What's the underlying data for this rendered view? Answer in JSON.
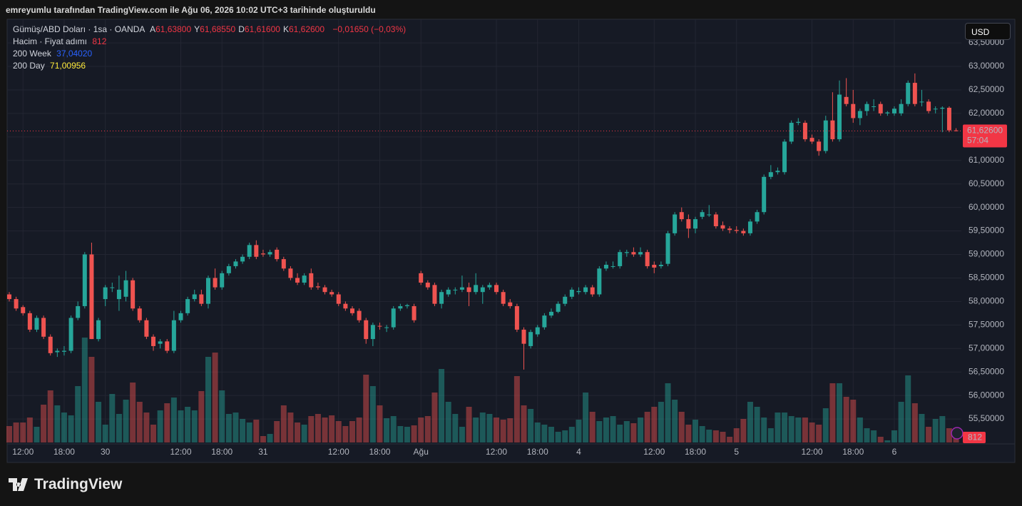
{
  "header": "emreyumlu tarafından TradingView.com ile Ağu 06, 2026 10:02 UTC+3 tarihinde oluşturuldu",
  "legend": {
    "symbol": "Gümüş/ABD Doları · 1sa · OANDA",
    "ohlc": [
      {
        "key": "A",
        "label": "61,63800"
      },
      {
        "key": "Y",
        "label": "61,68550"
      },
      {
        "key": "D",
        "label": "61,61600"
      },
      {
        "key": "K",
        "label": "61,62600"
      }
    ],
    "change": "−0,01650 (−0,03%)",
    "volume_name": "Hacim · Fiyat adımı",
    "indicators": [
      {
        "name": "200 Week",
        "label": "37,04020"
      },
      {
        "name": "200 Day",
        "label": "71,00956"
      }
    ]
  },
  "currency_button": "USD",
  "logo": "TradingView",
  "chart_data": {
    "type": "candlestick",
    "up_color": "#26a69a",
    "down_color": "#ef5350",
    "grid": true,
    "ylim": [
      55,
      64
    ],
    "yticks": [
      {
        "value": 55.5,
        "label": "55,50000"
      },
      {
        "value": 56,
        "label": "56,00000"
      },
      {
        "value": 56.5,
        "label": "56,50000"
      },
      {
        "value": 57,
        "label": "57,00000"
      },
      {
        "value": 57.5,
        "label": "57,50000"
      },
      {
        "value": 58,
        "label": "58,00000"
      },
      {
        "value": 58.5,
        "label": "58,50000"
      },
      {
        "value": 59,
        "label": "59,00000"
      },
      {
        "value": 59.5,
        "label": "59,50000"
      },
      {
        "value": 60,
        "label": "60,00000"
      },
      {
        "value": 60.5,
        "label": "60,50000"
      },
      {
        "value": 61,
        "label": "61,00000"
      },
      {
        "value": 61.5,
        "label": "61,50000"
      },
      {
        "value": 62,
        "label": "62,00000"
      },
      {
        "value": 62.5,
        "label": "62,50000"
      },
      {
        "value": 63,
        "label": "63,00000"
      },
      {
        "value": 63.5,
        "label": "63,50000"
      }
    ],
    "categories": [
      null,
      null,
      "12:00",
      null,
      null,
      null,
      null,
      null,
      "18:00",
      null,
      null,
      null,
      null,
      null,
      "30",
      null,
      null,
      null,
      null,
      null,
      null,
      null,
      null,
      null,
      null,
      "12:00",
      null,
      null,
      null,
      null,
      null,
      "18:00",
      null,
      null,
      null,
      null,
      null,
      "31",
      null,
      null,
      null,
      null,
      null,
      null,
      null,
      null,
      null,
      null,
      "12:00",
      null,
      null,
      null,
      null,
      null,
      "18:00",
      null,
      null,
      null,
      null,
      null,
      "Ağu",
      null,
      null,
      null,
      null,
      null,
      null,
      null,
      null,
      null,
      null,
      "12:00",
      null,
      null,
      null,
      null,
      null,
      "18:00",
      null,
      null,
      null,
      null,
      null,
      "4",
      null,
      null,
      null,
      null,
      null,
      null,
      null,
      null,
      null,
      null,
      "12:00",
      null,
      null,
      null,
      null,
      null,
      "18:00",
      null,
      null,
      null,
      null,
      null,
      "5",
      null,
      null,
      null,
      null,
      null,
      null,
      null,
      null,
      null,
      null,
      "12:00",
      null,
      null,
      null,
      null,
      null,
      "18:00",
      null,
      null,
      null,
      null,
      null,
      "6",
      null,
      null,
      null,
      null,
      null,
      null,
      null,
      null,
      null
    ],
    "series": [
      {
        "name": "Gümüş/ABD Doları",
        "values": [
          [
            58.15,
            58.2,
            58.0,
            58.05
          ],
          [
            58.05,
            58.1,
            57.8,
            57.85
          ],
          [
            57.88,
            57.92,
            57.7,
            57.75
          ],
          [
            57.75,
            57.8,
            57.35,
            57.4
          ],
          [
            57.4,
            57.7,
            57.35,
            57.65
          ],
          [
            57.65,
            57.7,
            57.2,
            57.25
          ],
          [
            57.25,
            57.3,
            56.85,
            56.9
          ],
          [
            56.92,
            57.0,
            56.82,
            56.95
          ],
          [
            56.93,
            57.05,
            56.85,
            56.95
          ],
          [
            56.95,
            57.7,
            56.9,
            57.65
          ],
          [
            57.65,
            58.0,
            57.6,
            57.9
          ],
          [
            57.9,
            59.05,
            57.85,
            59.0
          ],
          [
            59.0,
            59.25,
            57.2,
            57.2
          ],
          [
            57.2,
            57.65,
            57.15,
            57.6
          ],
          [
            58.05,
            58.35,
            57.9,
            58.3
          ],
          [
            58.3,
            58.4,
            58.2,
            58.3
          ],
          [
            58.05,
            58.55,
            57.8,
            58.25
          ],
          [
            58.1,
            58.65,
            58.0,
            58.45
          ],
          [
            58.45,
            58.5,
            57.8,
            57.85
          ],
          [
            57.85,
            57.9,
            57.55,
            57.6
          ],
          [
            57.6,
            57.65,
            57.2,
            57.25
          ],
          [
            57.25,
            57.3,
            56.95,
            57.05
          ],
          [
            57.1,
            57.2,
            57.0,
            57.15
          ],
          [
            57.15,
            57.2,
            56.9,
            56.95
          ],
          [
            56.95,
            57.8,
            56.9,
            57.6
          ],
          [
            57.6,
            57.8,
            57.55,
            57.75
          ],
          [
            57.75,
            58.1,
            57.7,
            58.05
          ],
          [
            58.05,
            58.25,
            58.0,
            58.15
          ],
          [
            58.15,
            58.25,
            57.9,
            57.95
          ],
          [
            57.95,
            58.55,
            57.85,
            58.5
          ],
          [
            58.5,
            58.7,
            58.25,
            58.3
          ],
          [
            58.3,
            58.65,
            58.25,
            58.6
          ],
          [
            58.6,
            58.8,
            58.55,
            58.75
          ],
          [
            58.75,
            58.9,
            58.7,
            58.85
          ],
          [
            58.85,
            59.0,
            58.8,
            58.95
          ],
          [
            58.95,
            59.25,
            58.9,
            59.2
          ],
          [
            59.2,
            59.3,
            58.9,
            58.95
          ],
          [
            59.02,
            59.1,
            58.95,
            59.0
          ],
          [
            59.0,
            59.1,
            58.95,
            59.05
          ],
          [
            59.1,
            59.15,
            58.85,
            58.9
          ],
          [
            58.9,
            58.95,
            58.65,
            58.7
          ],
          [
            58.7,
            58.75,
            58.45,
            58.5
          ],
          [
            58.5,
            58.6,
            58.35,
            58.4
          ],
          [
            58.4,
            58.6,
            58.35,
            58.55
          ],
          [
            58.6,
            58.7,
            58.25,
            58.3
          ],
          [
            58.32,
            58.4,
            58.25,
            58.3
          ],
          [
            58.3,
            58.35,
            58.15,
            58.2
          ],
          [
            58.2,
            58.25,
            58.1,
            58.15
          ],
          [
            58.15,
            58.2,
            57.9,
            57.95
          ],
          [
            57.95,
            58.0,
            57.8,
            57.85
          ],
          [
            57.85,
            57.9,
            57.7,
            57.75
          ],
          [
            57.8,
            57.85,
            57.55,
            57.6
          ],
          [
            57.6,
            57.65,
            57.1,
            57.2
          ],
          [
            57.2,
            57.55,
            57.05,
            57.5
          ],
          [
            57.48,
            57.55,
            57.4,
            57.47
          ],
          [
            57.45,
            57.5,
            57.35,
            57.45
          ],
          [
            57.45,
            57.9,
            57.4,
            57.85
          ],
          [
            57.85,
            57.95,
            57.8,
            57.9
          ],
          [
            57.9,
            57.95,
            57.85,
            57.92
          ],
          [
            57.9,
            57.95,
            57.55,
            57.6
          ],
          [
            58.6,
            58.65,
            58.35,
            58.4
          ],
          [
            58.4,
            58.45,
            58.25,
            58.3
          ],
          [
            58.35,
            58.4,
            57.9,
            57.95
          ],
          [
            57.95,
            58.25,
            57.85,
            58.2
          ],
          [
            58.15,
            58.3,
            58.1,
            58.25
          ],
          [
            58.25,
            58.3,
            58.15,
            58.25
          ],
          [
            58.25,
            58.55,
            58.2,
            58.3
          ],
          [
            58.3,
            58.4,
            57.9,
            58.2
          ],
          [
            58.2,
            58.6,
            58.15,
            58.35
          ],
          [
            58.2,
            58.35,
            57.95,
            58.3
          ],
          [
            58.3,
            58.4,
            58.25,
            58.35
          ],
          [
            58.35,
            58.4,
            58.15,
            58.2
          ],
          [
            58.2,
            58.25,
            57.9,
            57.95
          ],
          [
            57.98,
            58.05,
            57.85,
            57.9
          ],
          [
            57.9,
            57.95,
            57.35,
            57.4
          ],
          [
            57.4,
            57.45,
            56.55,
            57.1
          ],
          [
            57.05,
            57.4,
            57.0,
            57.35
          ],
          [
            57.3,
            57.5,
            57.25,
            57.45
          ],
          [
            57.45,
            57.75,
            57.4,
            57.7
          ],
          [
            57.7,
            57.85,
            57.65,
            57.78
          ],
          [
            57.78,
            58.0,
            57.75,
            57.95
          ],
          [
            57.95,
            58.15,
            57.9,
            58.1
          ],
          [
            58.1,
            58.3,
            58.05,
            58.25
          ],
          [
            58.2,
            58.3,
            58.15,
            58.22
          ],
          [
            58.2,
            58.35,
            58.15,
            58.3
          ],
          [
            58.3,
            58.35,
            58.1,
            58.15
          ],
          [
            58.15,
            58.75,
            58.1,
            58.7
          ],
          [
            58.7,
            58.85,
            58.65,
            58.78
          ],
          [
            58.75,
            58.85,
            58.7,
            58.75
          ],
          [
            58.75,
            59.1,
            58.7,
            59.05
          ],
          [
            59.03,
            59.1,
            58.95,
            59.05
          ],
          [
            59.05,
            59.15,
            58.95,
            59.0
          ],
          [
            59.0,
            59.15,
            58.95,
            59.05
          ],
          [
            59.05,
            59.1,
            58.7,
            58.75
          ],
          [
            58.78,
            58.85,
            58.6,
            58.72
          ],
          [
            58.75,
            58.85,
            58.7,
            58.78
          ],
          [
            58.8,
            59.5,
            58.75,
            59.45
          ],
          [
            59.45,
            59.9,
            59.4,
            59.85
          ],
          [
            59.9,
            60.0,
            59.7,
            59.75
          ],
          [
            59.75,
            59.85,
            59.35,
            59.55
          ],
          [
            59.55,
            59.8,
            59.45,
            59.75
          ],
          [
            59.8,
            59.95,
            59.75,
            59.9
          ],
          [
            59.85,
            60.05,
            59.8,
            59.85
          ],
          [
            59.85,
            59.9,
            59.55,
            59.6
          ],
          [
            59.62,
            59.7,
            59.5,
            59.55
          ],
          [
            59.55,
            59.6,
            59.45,
            59.52
          ],
          [
            59.52,
            59.6,
            59.45,
            59.5
          ],
          [
            59.5,
            59.55,
            59.4,
            59.45
          ],
          [
            59.45,
            59.75,
            59.4,
            59.7
          ],
          [
            59.7,
            59.95,
            59.65,
            59.9
          ],
          [
            59.9,
            60.7,
            59.85,
            60.65
          ],
          [
            60.65,
            60.9,
            60.6,
            60.75
          ],
          [
            60.75,
            60.85,
            60.7,
            60.78
          ],
          [
            60.75,
            61.45,
            60.7,
            61.4
          ],
          [
            61.4,
            61.85,
            61.35,
            61.8
          ],
          [
            61.8,
            61.9,
            61.75,
            61.82
          ],
          [
            61.8,
            61.85,
            61.4,
            61.45
          ],
          [
            61.48,
            61.55,
            61.35,
            61.4
          ],
          [
            61.4,
            61.45,
            61.1,
            61.2
          ],
          [
            61.2,
            61.95,
            61.15,
            61.85
          ],
          [
            61.85,
            62.45,
            61.4,
            61.45
          ],
          [
            61.45,
            62.7,
            61.4,
            62.4
          ],
          [
            62.35,
            62.75,
            62.15,
            62.2
          ],
          [
            62.2,
            62.5,
            61.8,
            61.9
          ],
          [
            61.9,
            62.1,
            61.75,
            62.05
          ],
          [
            62.05,
            62.25,
            61.95,
            62.2
          ],
          [
            62.15,
            62.3,
            62.05,
            62.15
          ],
          [
            62.2,
            62.25,
            61.95,
            62.0
          ],
          [
            62.0,
            62.05,
            61.95,
            62.02
          ],
          [
            62.0,
            62.15,
            61.95,
            62.1
          ],
          [
            62.0,
            62.3,
            61.95,
            62.2
          ],
          [
            62.2,
            62.7,
            62.15,
            62.65
          ],
          [
            62.65,
            62.85,
            62.15,
            62.2
          ],
          [
            62.25,
            62.5,
            62.15,
            62.25
          ],
          [
            62.25,
            62.3,
            62.0,
            62.05
          ],
          [
            62.1,
            62.15,
            62.0,
            62.1
          ],
          [
            62.1,
            62.15,
            61.6,
            62.12
          ],
          [
            62.12,
            62.15,
            61.6,
            61.64
          ],
          [
            61.638,
            61.6855,
            61.616,
            61.626
          ]
        ]
      }
    ],
    "volumes": [
      920,
      1120,
      1120,
      1400,
      880,
      2120,
      2920,
      2080,
      1680,
      1520,
      3160,
      5880,
      4800,
      2280,
      1000,
      2720,
      1600,
      2400,
      3360,
      2280,
      1680,
      1000,
      1800,
      2200,
      2520,
      1800,
      2000,
      1800,
      2880,
      4800,
      5040,
      2920,
      1600,
      1680,
      1320,
      1120,
      1280,
      360,
      480,
      1200,
      2080,
      1680,
      1120,
      1000,
      1480,
      1600,
      1400,
      1520,
      1200,
      920,
      1200,
      1400,
      3800,
      3160,
      2080,
      1360,
      1480,
      920,
      880,
      960,
      1400,
      1480,
      2800,
      4120,
      2280,
      1600,
      880,
      2000,
      1400,
      1680,
      1600,
      1400,
      1280,
      1360,
      3720,
      2080,
      1880,
      1120,
      1000,
      880,
      600,
      680,
      880,
      1280,
      2800,
      1720,
      1200,
      1400,
      1480,
      1000,
      1200,
      1080,
      1400,
      1720,
      2000,
      2280,
      3320,
      2400,
      1720,
      1000,
      1280,
      920,
      720,
      680,
      600,
      320,
      800,
      1320,
      2280,
      2000,
      1400,
      800,
      1680,
      1680,
      1480,
      1400,
      1400,
      1120,
      1000,
      1920,
      3320,
      3320,
      2560,
      2400,
      1400,
      800,
      680,
      320,
      120,
      680,
      2280,
      3760,
      2200,
      1600,
      880,
      1320,
      1480,
      800,
      812
    ],
    "price_tag": {
      "label": "61,62600",
      "countdown": "57:04"
    }
  }
}
